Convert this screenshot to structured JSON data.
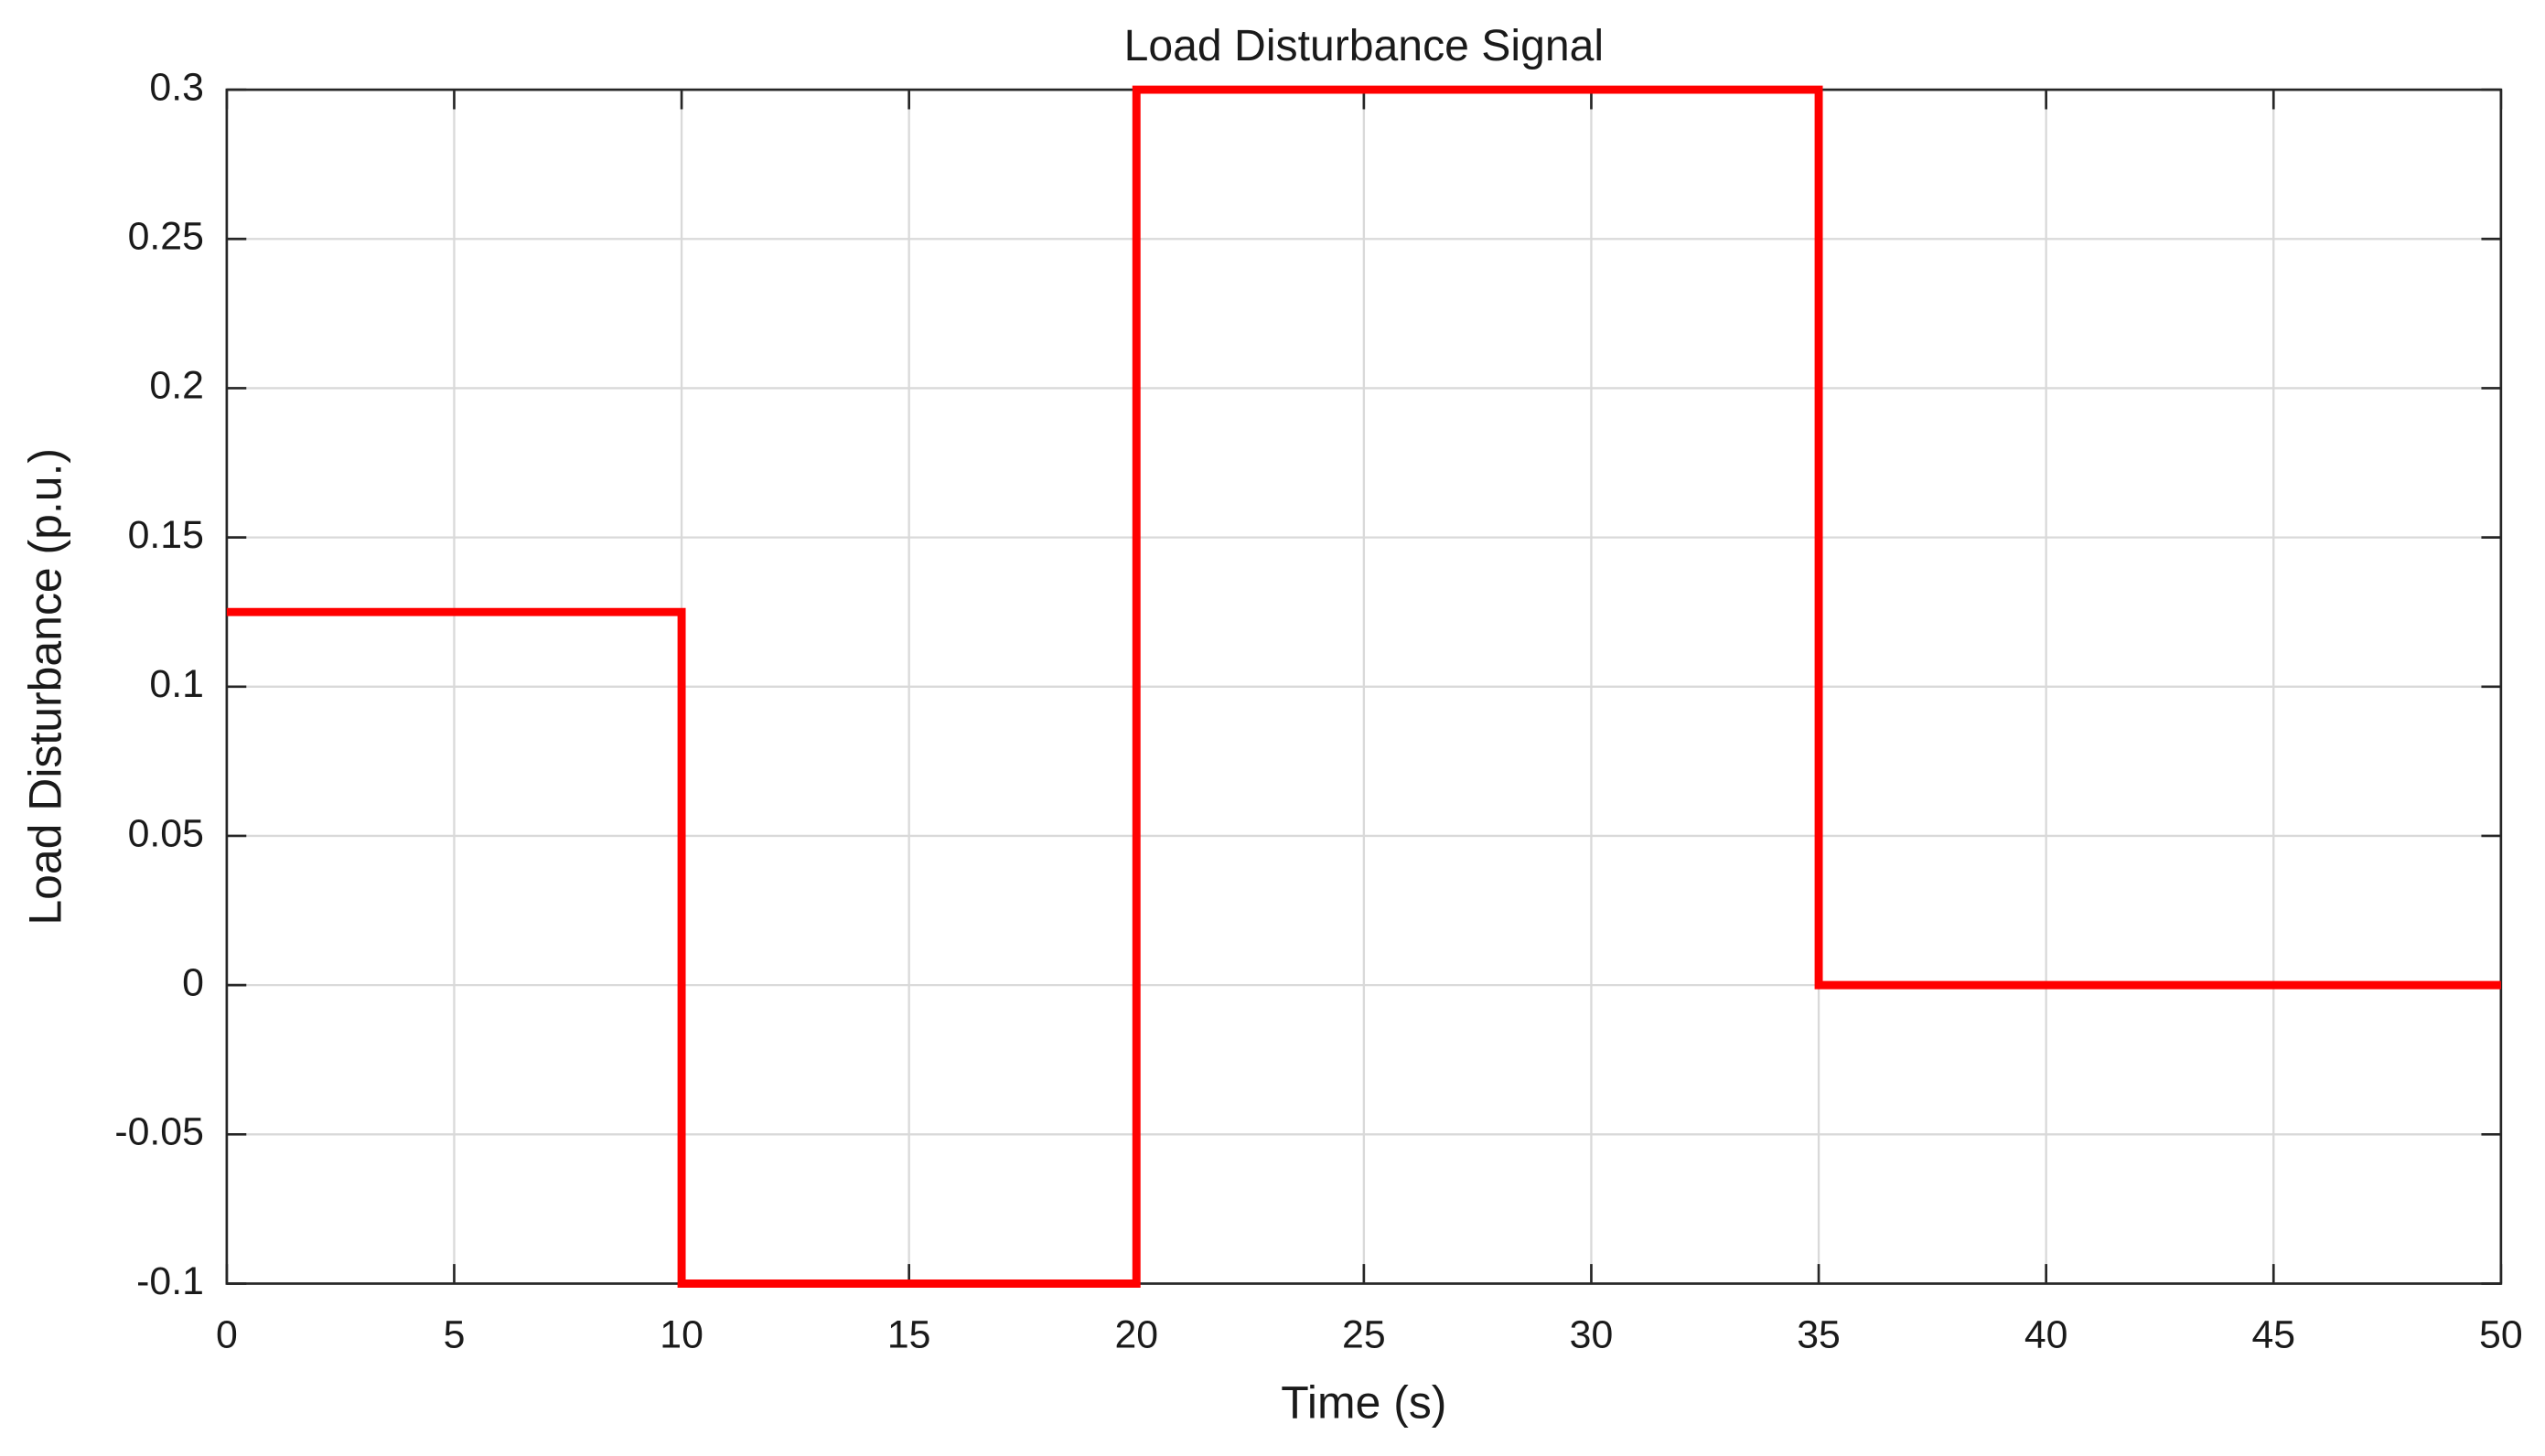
{
  "chart_data": {
    "type": "line",
    "title": "Load Disturbance Signal",
    "x_label": "Time (s)",
    "y_label": "Load Disturbance  (p.u.)",
    "x": [
      0,
      10,
      10,
      20,
      20,
      35,
      35,
      50
    ],
    "series": [
      {
        "color": "#ff0000",
        "values": [
          0.125,
          0.125,
          -0.1,
          -0.1,
          0.3,
          0.3,
          0,
          0
        ]
      }
    ],
    "xlim": [
      0,
      50
    ],
    "xticks": [
      0,
      5,
      10,
      15,
      20,
      25,
      30,
      35,
      40,
      45,
      50
    ],
    "ylim": [
      -0.1,
      0.3
    ],
    "yticks": [
      -0.1,
      -0.05,
      0,
      0.05,
      0.1,
      0.15,
      0.2,
      0.25,
      0.3
    ],
    "grid": true
  }
}
